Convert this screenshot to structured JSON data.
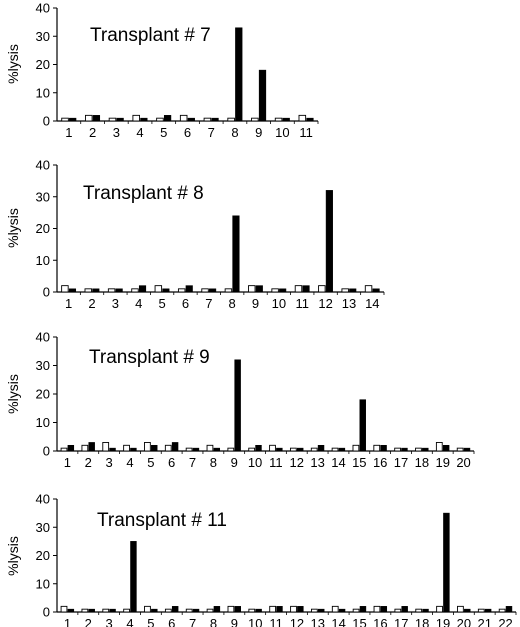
{
  "chart_data": [
    {
      "type": "bar",
      "title": "Transplant # 7",
      "ylabel": "%lysis",
      "ylim": [
        0,
        40
      ],
      "yticks": [
        0,
        10,
        20,
        30,
        40
      ],
      "categories": [
        "1",
        "2",
        "3",
        "4",
        "5",
        "6",
        "7",
        "8",
        "9",
        "10",
        "11"
      ],
      "series": [
        {
          "fill": "open",
          "values": [
            1,
            2,
            1,
            2,
            1,
            2,
            1,
            1,
            1,
            1,
            2
          ]
        },
        {
          "fill": "solid",
          "values": [
            1,
            2,
            1,
            1,
            2,
            1,
            1,
            33,
            18,
            1,
            1
          ]
        }
      ]
    },
    {
      "type": "bar",
      "title": "Transplant # 8",
      "ylabel": "%lysis",
      "ylim": [
        0,
        40
      ],
      "yticks": [
        0,
        10,
        20,
        30,
        40
      ],
      "categories": [
        "1",
        "2",
        "3",
        "4",
        "5",
        "6",
        "7",
        "8",
        "9",
        "10",
        "11",
        "12",
        "13",
        "14"
      ],
      "series": [
        {
          "fill": "open",
          "values": [
            2,
            1,
            1,
            1,
            2,
            1,
            1,
            1,
            2,
            1,
            2,
            2,
            1,
            2
          ]
        },
        {
          "fill": "solid",
          "values": [
            1,
            1,
            1,
            2,
            1,
            2,
            1,
            24,
            2,
            1,
            2,
            32,
            1,
            1
          ]
        }
      ]
    },
    {
      "type": "bar",
      "title": "Transplant # 9",
      "ylabel": "%lysis",
      "ylim": [
        0,
        40
      ],
      "yticks": [
        0,
        10,
        20,
        30,
        40
      ],
      "categories": [
        "1",
        "2",
        "3",
        "4",
        "5",
        "6",
        "7",
        "8",
        "9",
        "10",
        "11",
        "12",
        "13",
        "14",
        "15",
        "16",
        "17",
        "18",
        "19",
        "20"
      ],
      "series": [
        {
          "fill": "open",
          "values": [
            1,
            2,
            3,
            2,
            3,
            2,
            1,
            2,
            1,
            1,
            2,
            1,
            1,
            1,
            2,
            2,
            1,
            1,
            3,
            1
          ]
        },
        {
          "fill": "solid",
          "values": [
            2,
            3,
            1,
            1,
            2,
            3,
            1,
            1,
            32,
            2,
            1,
            1,
            2,
            1,
            18,
            2,
            1,
            1,
            2,
            1
          ]
        }
      ]
    },
    {
      "type": "bar",
      "title": "Transplant # 11",
      "ylabel": "%lysis",
      "ylim": [
        0,
        40
      ],
      "yticks": [
        0,
        10,
        20,
        30,
        40
      ],
      "categories": [
        "1",
        "2",
        "3",
        "4",
        "5",
        "6",
        "7",
        "8",
        "9",
        "10",
        "11",
        "12",
        "13",
        "14",
        "15",
        "16",
        "17",
        "18",
        "19",
        "20",
        "21",
        "22"
      ],
      "series": [
        {
          "fill": "open",
          "values": [
            2,
            1,
            1,
            1,
            2,
            1,
            1,
            1,
            2,
            1,
            2,
            2,
            1,
            2,
            1,
            2,
            1,
            1,
            2,
            2,
            1,
            1
          ]
        },
        {
          "fill": "solid",
          "values": [
            1,
            1,
            1,
            25,
            1,
            2,
            1,
            2,
            2,
            1,
            2,
            2,
            1,
            1,
            2,
            2,
            2,
            1,
            35,
            1,
            1,
            2
          ]
        }
      ]
    }
  ]
}
